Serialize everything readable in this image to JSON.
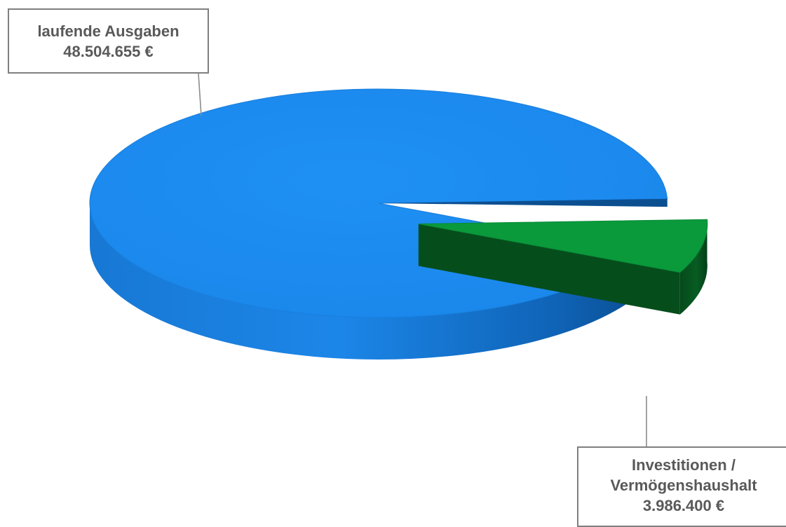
{
  "chart_data": {
    "type": "pie",
    "style": "3d-exploded",
    "slices": [
      {
        "label": "laufende Ausgaben",
        "value": 48504655,
        "value_text": "48.504.655 €",
        "color": "#1c8ef0",
        "side_color": "#0d5fae"
      },
      {
        "label_lines": [
          "Investitionen /",
          "Vermögenshaushalt"
        ],
        "value": 3986400,
        "value_text": "3.986.400 €",
        "color": "#0a9a3c",
        "side_color": "#06551f",
        "exploded": true
      }
    ]
  }
}
